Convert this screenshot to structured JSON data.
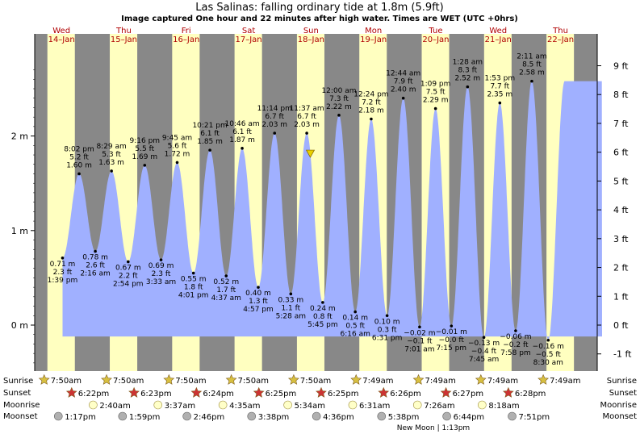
{
  "title": "Las Salinas: falling  ordinary tide at 1.8m (5.9ft)",
  "subtitle": "Image captured One hour and 22 minutes after high water. Times are WET (UTC +0hrs)",
  "days": [
    {
      "dow": "Wed",
      "date": "14–Jan"
    },
    {
      "dow": "Thu",
      "date": "15–Jan"
    },
    {
      "dow": "Fri",
      "date": "16–Jan"
    },
    {
      "dow": "Sat",
      "date": "17–Jan"
    },
    {
      "dow": "Sun",
      "date": "18–Jan"
    },
    {
      "dow": "Mon",
      "date": "19–Jan"
    },
    {
      "dow": "Tue",
      "date": "20–Jan"
    },
    {
      "dow": "Wed",
      "date": "21–Jan"
    },
    {
      "dow": "Thu",
      "date": "22–Jan"
    }
  ],
  "colors": {
    "night": "#888888",
    "day": "#ffffc0",
    "tide": "#a0b0ff",
    "star_sunrise": "#d8c040",
    "star_sunset": "#cc3333",
    "moonrise": "#ffffc8",
    "moonset": "#b0b0b0",
    "marker": "#e8d000"
  },
  "chart_data": {
    "type": "area",
    "title": "Las Salinas: falling  ordinary tide at 1.8m (5.9ft)",
    "y_ticks_m": [
      "2 m",
      "1 m",
      "0 m"
    ],
    "y_ticks_ft": [
      "9 ft",
      "8 ft",
      "7 ft",
      "6 ft",
      "5 ft",
      "4 ft",
      "3 ft",
      "2 ft",
      "1 ft",
      "0 ft",
      "-1 ft"
    ],
    "ylim_m": [
      -0.45,
      2.85
    ],
    "current_level_m": 1.8,
    "current_time_label": "Sun 18–Jan ~1:00 pm",
    "extremes": [
      {
        "type": "low",
        "time": "1:39 pm",
        "m": "0.71 m",
        "ft": "2.3 ft",
        "value": 0.71
      },
      {
        "type": "high",
        "time": "8:02 pm",
        "m": "1.60 m",
        "ft": "5.2 ft",
        "value": 1.6
      },
      {
        "type": "low",
        "time": "2:16 am",
        "m": "0.78 m",
        "ft": "2.6 ft",
        "value": 0.78
      },
      {
        "type": "high",
        "time": "8:29 am",
        "m": "1.63 m",
        "ft": "5.3 ft",
        "value": 1.63
      },
      {
        "type": "low",
        "time": "2:54 pm",
        "m": "0.67 m",
        "ft": "2.2 ft",
        "value": 0.67
      },
      {
        "type": "high",
        "time": "9:16 pm",
        "m": "1.69 m",
        "ft": "5.5 ft",
        "value": 1.69
      },
      {
        "type": "low",
        "time": "3:33 am",
        "m": "0.69 m",
        "ft": "2.3 ft",
        "value": 0.69
      },
      {
        "type": "high",
        "time": "9:45 am",
        "m": "1.72 m",
        "ft": "5.6 ft",
        "value": 1.72
      },
      {
        "type": "low",
        "time": "4:01 pm",
        "m": "0.55 m",
        "ft": "1.8 ft",
        "value": 0.55
      },
      {
        "type": "high",
        "time": "10:21 pm",
        "m": "1.85 m",
        "ft": "6.1 ft",
        "value": 1.85
      },
      {
        "type": "low",
        "time": "4:37 am",
        "m": "0.52 m",
        "ft": "1.7 ft",
        "value": 0.52
      },
      {
        "type": "high",
        "time": "10:46 am",
        "m": "1.87 m",
        "ft": "6.1 ft",
        "value": 1.87
      },
      {
        "type": "low",
        "time": "4:57 pm",
        "m": "0.40 m",
        "ft": "1.3 ft",
        "value": 0.4
      },
      {
        "type": "high",
        "time": "11:14 pm",
        "m": "2.03 m",
        "ft": "6.7 ft",
        "value": 2.03
      },
      {
        "type": "low",
        "time": "5:28 am",
        "m": "0.33 m",
        "ft": "1.1 ft",
        "value": 0.33
      },
      {
        "type": "high",
        "time": "11:37 am",
        "m": "2.03 m",
        "ft": "6.7 ft",
        "value": 2.03
      },
      {
        "type": "low",
        "time": "5:45 pm",
        "m": "0.24 m",
        "ft": "0.8 ft",
        "value": 0.24
      },
      {
        "type": "high",
        "time": "12:00 am",
        "m": "2.22 m",
        "ft": "7.3 ft",
        "value": 2.22
      },
      {
        "type": "low",
        "time": "6:16 am",
        "m": "0.14 m",
        "ft": "0.5 ft",
        "value": 0.14
      },
      {
        "type": "high",
        "time": "12:24 pm",
        "m": "2.18 m",
        "ft": "7.2 ft",
        "value": 2.18
      },
      {
        "type": "low",
        "time": "6:31 pm",
        "m": "0.10 m",
        "ft": "0.3 ft",
        "value": 0.1
      },
      {
        "type": "high",
        "time": "12:44 am",
        "m": "2.40 m",
        "ft": "7.9 ft",
        "value": 2.4
      },
      {
        "type": "low",
        "time": "7:01 am",
        "m": "−0.02 m",
        "ft": "−0.1 ft",
        "value": -0.02
      },
      {
        "type": "high",
        "time": "1:09 pm",
        "m": "2.29 m",
        "ft": "7.5 ft",
        "value": 2.29
      },
      {
        "type": "low",
        "time": "7:15 pm",
        "m": "−0.01 m",
        "ft": "−0.0 ft",
        "value": -0.01
      },
      {
        "type": "high",
        "time": "1:28 am",
        "m": "2.52 m",
        "ft": "8.3 ft",
        "value": 2.52
      },
      {
        "type": "low",
        "time": "7:45 am",
        "m": "−0.13 m",
        "ft": "−0.4 ft",
        "value": -0.13
      },
      {
        "type": "high",
        "time": "1:53 pm",
        "m": "2.35 m",
        "ft": "7.7 ft",
        "value": 2.35
      },
      {
        "type": "low",
        "time": "7:58 pm",
        "m": "−0.06 m",
        "ft": "−0.2 ft",
        "value": -0.06
      },
      {
        "type": "high",
        "time": "2:11 am",
        "m": "2.58 m",
        "ft": "8.5 ft",
        "value": 2.58
      },
      {
        "type": "low",
        "time": "8:30 am",
        "m": "−0.16 m",
        "ft": "−0.5 ft",
        "value": -0.16
      }
    ]
  },
  "astro_labels": {
    "sunrise": "Sunrise",
    "sunset": "Sunset",
    "moonrise": "Moonrise",
    "moonset": "Moonset"
  },
  "sunrise": [
    "7:50am",
    "7:50am",
    "7:50am",
    "7:50am",
    "7:50am",
    "7:49am",
    "7:49am",
    "7:49am",
    "7:49am"
  ],
  "sunset": [
    "6:22pm",
    "6:23pm",
    "6:24pm",
    "6:25pm",
    "6:25pm",
    "6:26pm",
    "6:27pm",
    "6:28pm"
  ],
  "moonrise": [
    "2:40am",
    "3:37am",
    "4:35am",
    "5:34am",
    "6:31am",
    "7:26am",
    "8:18am"
  ],
  "moonset": [
    "1:17pm",
    "1:59pm",
    "2:46pm",
    "3:38pm",
    "4:36pm",
    "5:38pm",
    "6:44pm",
    "7:51pm"
  ],
  "new_moon": "New Moon | 1:13pm"
}
